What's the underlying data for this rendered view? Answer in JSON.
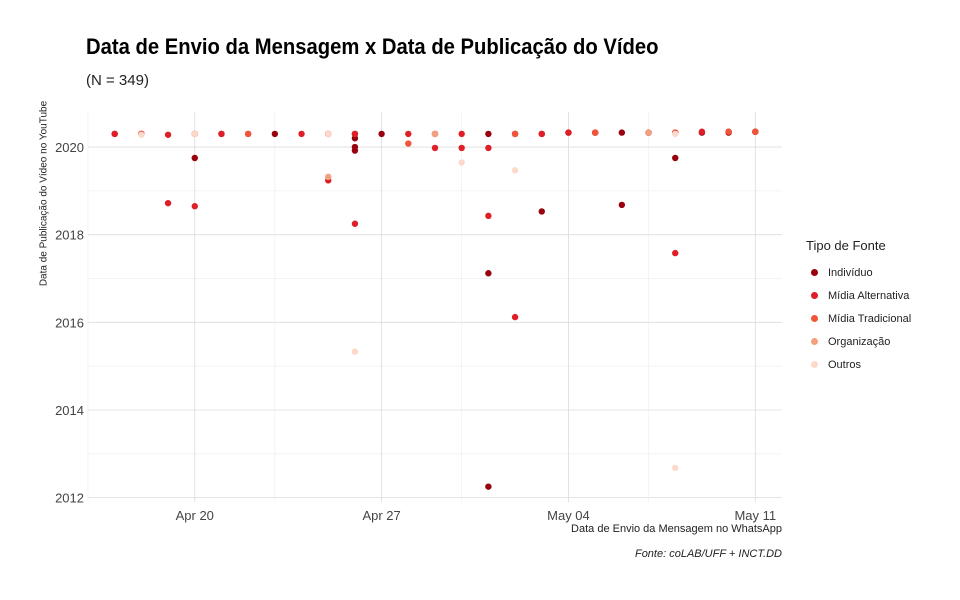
{
  "chart_data": {
    "type": "scatter",
    "title": "Data de Envio da Mensagem x Data de Publicação do Vídeo",
    "subtitle": "(N = 349)",
    "xlabel": "Data de Envio da Mensagem no WhatsApp",
    "ylabel": "Data de Publicação do Vídeo no YouTube",
    "caption": "Fonte: coLAB/UFF + INCT.DD",
    "legend_title": "Tipo de Fonte",
    "legend_position": "right",
    "grid": true,
    "x_ticks": [
      "Apr 20",
      "Apr 27",
      "May 04",
      "May 11"
    ],
    "x_tick_values": [
      "2020-04-20",
      "2020-04-27",
      "2020-05-04",
      "2020-05-11"
    ],
    "xlim": [
      "2020-04-16",
      "2020-05-12"
    ],
    "y_ticks": [
      "2012",
      "2014",
      "2016",
      "2018",
      "2020"
    ],
    "y_tick_values": [
      2012,
      2014,
      2016,
      2018,
      2020
    ],
    "ylim": [
      2011.9,
      2020.8
    ],
    "series": [
      {
        "name": "Indivíduo",
        "color": "#99000d",
        "points": [
          [
            "2020-04-17",
            2020.3
          ],
          [
            "2020-04-18",
            2020.3
          ],
          [
            "2020-04-20",
            2020.3
          ],
          [
            "2020-04-20",
            2019.75
          ],
          [
            "2020-04-21",
            2020.3
          ],
          [
            "2020-04-23",
            2020.3
          ],
          [
            "2020-04-25",
            2020.3
          ],
          [
            "2020-04-26",
            2020.3
          ],
          [
            "2020-04-26",
            2020.2
          ],
          [
            "2020-04-26",
            2020.0
          ],
          [
            "2020-04-26",
            2019.92
          ],
          [
            "2020-04-27",
            2020.3
          ],
          [
            "2020-04-29",
            2020.3
          ],
          [
            "2020-05-01",
            2020.3
          ],
          [
            "2020-05-01",
            2012.25
          ],
          [
            "2020-05-01",
            2017.12
          ],
          [
            "2020-05-02",
            2020.3
          ],
          [
            "2020-05-03",
            2020.3
          ],
          [
            "2020-05-03",
            2018.53
          ],
          [
            "2020-05-04",
            2020.33
          ],
          [
            "2020-05-05",
            2020.33
          ],
          [
            "2020-05-06",
            2020.33
          ],
          [
            "2020-05-06",
            2018.68
          ],
          [
            "2020-05-07",
            2020.33
          ],
          [
            "2020-05-08",
            2020.33
          ],
          [
            "2020-05-08",
            2019.75
          ],
          [
            "2020-05-09",
            2020.33
          ],
          [
            "2020-05-10",
            2020.33
          ],
          [
            "2020-05-11",
            2020.35
          ]
        ]
      },
      {
        "name": "Mídia Alternativa",
        "color": "#de1f26",
        "points": [
          [
            "2020-04-17",
            2020.3
          ],
          [
            "2020-04-18",
            2020.3
          ],
          [
            "2020-04-19",
            2018.72
          ],
          [
            "2020-04-20",
            2018.65
          ],
          [
            "2020-04-19",
            2020.28
          ],
          [
            "2020-04-21",
            2020.3
          ],
          [
            "2020-04-22",
            2020.3
          ],
          [
            "2020-04-24",
            2020.3
          ],
          [
            "2020-04-25",
            2019.24
          ],
          [
            "2020-04-26",
            2018.25
          ],
          [
            "2020-04-26",
            2020.3
          ],
          [
            "2020-04-28",
            2020.3
          ],
          [
            "2020-04-29",
            2019.98
          ],
          [
            "2020-04-30",
            2019.98
          ],
          [
            "2020-04-30",
            2020.3
          ],
          [
            "2020-05-01",
            2019.98
          ],
          [
            "2020-05-01",
            2018.43
          ],
          [
            "2020-05-02",
            2016.12
          ],
          [
            "2020-05-02",
            2020.3
          ],
          [
            "2020-05-03",
            2020.3
          ],
          [
            "2020-05-04",
            2020.33
          ],
          [
            "2020-05-05",
            2020.33
          ],
          [
            "2020-05-07",
            2020.33
          ],
          [
            "2020-05-08",
            2017.58
          ],
          [
            "2020-05-09",
            2020.35
          ],
          [
            "2020-05-10",
            2020.35
          ],
          [
            "2020-05-11",
            2020.35
          ]
        ]
      },
      {
        "name": "Mídia Tradicional",
        "color": "#f0553a",
        "points": [
          [
            "2020-04-18",
            2020.3
          ],
          [
            "2020-04-20",
            2020.3
          ],
          [
            "2020-04-22",
            2020.3
          ],
          [
            "2020-04-25",
            2020.3
          ],
          [
            "2020-04-28",
            2020.08
          ],
          [
            "2020-04-29",
            2020.3
          ],
          [
            "2020-05-02",
            2020.3
          ],
          [
            "2020-05-05",
            2020.33
          ],
          [
            "2020-05-08",
            2020.33
          ],
          [
            "2020-05-10",
            2020.35
          ],
          [
            "2020-05-11",
            2020.35
          ]
        ]
      },
      {
        "name": "Organização",
        "color": "#f2a07e",
        "points": [
          [
            "2020-04-25",
            2019.32
          ],
          [
            "2020-04-29",
            2020.3
          ],
          [
            "2020-05-07",
            2020.33
          ]
        ]
      },
      {
        "name": "Outros",
        "color": "#fcd9cb",
        "points": [
          [
            "2020-04-18",
            2020.28
          ],
          [
            "2020-04-20",
            2020.3
          ],
          [
            "2020-04-26",
            2015.33
          ],
          [
            "2020-04-25",
            2020.3
          ],
          [
            "2020-04-30",
            2019.65
          ],
          [
            "2020-05-02",
            2019.47
          ],
          [
            "2020-05-08",
            2020.3
          ],
          [
            "2020-05-08",
            2012.68
          ]
        ]
      }
    ]
  }
}
